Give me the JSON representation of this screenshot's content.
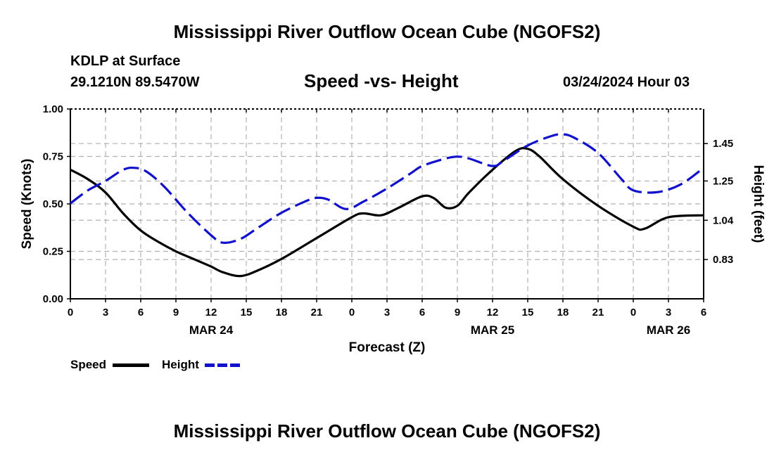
{
  "header": {
    "title": "Mississippi River Outflow Ocean Cube (NGOFS2)",
    "station": "KDLP at Surface",
    "coords": "29.1210N  89.5470W",
    "subtitle": "Speed -vs- Height",
    "timestamp": "03/24/2024 Hour 03"
  },
  "footer": {
    "title": "Mississippi River Outflow Ocean Cube (NGOFS2)"
  },
  "legend": {
    "speed_label": "Speed",
    "height_label": "Height"
  },
  "colors": {
    "speed": "#000000",
    "height": "#1111cc",
    "grid": "#b0b0b0"
  },
  "chart_data": {
    "type": "line",
    "title": "Speed -vs- Height",
    "xlabel": "Forecast (Z)",
    "ylabel": "Speed (Knots)",
    "y2label": "Height (feet)",
    "xlim": [
      0,
      54
    ],
    "ylim": [
      0,
      1
    ],
    "y2lim": [
      0.62,
      1.635
    ],
    "grid": true,
    "x_ticks": [
      {
        "x": 0,
        "label": "0"
      },
      {
        "x": 3,
        "label": "3"
      },
      {
        "x": 6,
        "label": "6"
      },
      {
        "x": 9,
        "label": "9"
      },
      {
        "x": 12,
        "label": "12"
      },
      {
        "x": 15,
        "label": "15"
      },
      {
        "x": 18,
        "label": "18"
      },
      {
        "x": 21,
        "label": "21"
      },
      {
        "x": 24,
        "label": "0"
      },
      {
        "x": 27,
        "label": "3"
      },
      {
        "x": 30,
        "label": "6"
      },
      {
        "x": 33,
        "label": "9"
      },
      {
        "x": 36,
        "label": "12"
      },
      {
        "x": 39,
        "label": "15"
      },
      {
        "x": 42,
        "label": "18"
      },
      {
        "x": 45,
        "label": "21"
      },
      {
        "x": 48,
        "label": "0"
      },
      {
        "x": 51,
        "label": "3"
      },
      {
        "x": 54,
        "label": "6"
      }
    ],
    "date_labels": [
      {
        "x": 12,
        "label": "MAR 24"
      },
      {
        "x": 36,
        "label": "MAR 25"
      },
      {
        "x": 51,
        "label": "MAR 26"
      }
    ],
    "y_ticks": [
      {
        "y": 0,
        "label": "0.00"
      },
      {
        "y": 0.25,
        "label": "0.25"
      },
      {
        "y": 0.5,
        "label": "0.50"
      },
      {
        "y": 0.75,
        "label": "0.75"
      },
      {
        "y": 1.0,
        "label": "1.00"
      }
    ],
    "y2_ticks": [
      {
        "y": 0.83,
        "label": "0.83"
      },
      {
        "y": 1.04,
        "label": "1.04"
      },
      {
        "y": 1.25,
        "label": "1.25"
      },
      {
        "y": 1.45,
        "label": "1.45"
      }
    ],
    "series": [
      {
        "name": "Speed",
        "axis": "left",
        "style": "solid",
        "x": [
          0,
          1.5,
          3,
          4.5,
          6,
          7.5,
          9,
          10.5,
          12,
          13,
          14.5,
          16,
          18,
          21,
          24,
          25,
          26.5,
          28,
          30,
          31,
          32,
          33,
          34,
          36,
          38,
          39,
          40,
          42,
          45,
          48,
          49,
          51,
          54
        ],
        "y": [
          0.68,
          0.63,
          0.56,
          0.45,
          0.36,
          0.3,
          0.25,
          0.21,
          0.17,
          0.14,
          0.12,
          0.15,
          0.21,
          0.32,
          0.43,
          0.45,
          0.44,
          0.48,
          0.54,
          0.53,
          0.48,
          0.49,
          0.56,
          0.68,
          0.78,
          0.79,
          0.75,
          0.63,
          0.49,
          0.38,
          0.37,
          0.43,
          0.44
        ]
      },
      {
        "name": "Height",
        "axis": "right",
        "style": "dashed",
        "x": [
          0,
          1.5,
          3,
          4.5,
          5.5,
          6.5,
          8,
          10,
          12,
          13,
          14.5,
          16,
          18,
          20,
          21,
          22,
          23.5,
          25,
          27,
          29,
          30,
          32,
          33,
          34,
          36,
          37,
          39,
          41,
          42,
          43,
          45,
          47,
          48,
          50,
          52,
          54
        ],
        "y": [
          1.13,
          1.2,
          1.25,
          1.31,
          1.32,
          1.3,
          1.22,
          1.08,
          0.96,
          0.92,
          0.94,
          1.0,
          1.08,
          1.14,
          1.16,
          1.15,
          1.1,
          1.14,
          1.21,
          1.29,
          1.33,
          1.37,
          1.38,
          1.37,
          1.33,
          1.36,
          1.44,
          1.49,
          1.5,
          1.48,
          1.4,
          1.26,
          1.2,
          1.19,
          1.23,
          1.32
        ]
      }
    ]
  }
}
